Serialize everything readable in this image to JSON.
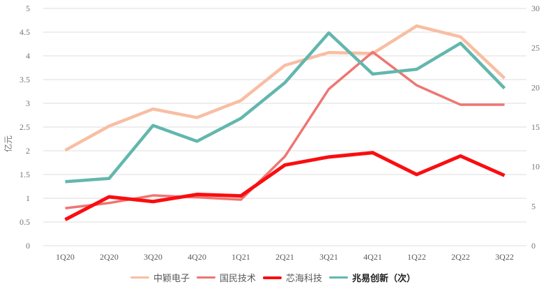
{
  "chart_data": {
    "type": "line",
    "categories": [
      "1Q20",
      "2Q20",
      "3Q20",
      "4Q20",
      "1Q21",
      "2Q21",
      "3Q21",
      "4Q21",
      "1Q22",
      "2Q22",
      "3Q22"
    ],
    "series": [
      {
        "name": "中颖电子",
        "axis": "left",
        "color": "#F8BEA3",
        "width": 4.5,
        "legend_bold": false,
        "values": [
          2.01,
          2.52,
          2.88,
          2.7,
          3.06,
          3.8,
          4.07,
          4.05,
          4.63,
          4.4,
          3.53
        ]
      },
      {
        "name": "国民技术",
        "axis": "left",
        "color": "#EE7672",
        "width": 3.5,
        "legend_bold": false,
        "values": [
          0.79,
          0.9,
          1.06,
          1.02,
          0.97,
          1.88,
          3.3,
          4.08,
          3.38,
          2.97,
          2.97
        ]
      },
      {
        "name": "芯海科技",
        "axis": "left",
        "color": "#FA0D10",
        "width": 5,
        "legend_bold": false,
        "values": [
          0.55,
          1.03,
          0.93,
          1.08,
          1.05,
          1.7,
          1.87,
          1.96,
          1.5,
          1.89,
          1.48
        ]
      },
      {
        "name": "兆易创新（次）",
        "axis": "right",
        "color": "#62B7AD",
        "width": 4.5,
        "legend_bold": true,
        "values": [
          8.1,
          8.5,
          15.2,
          13.2,
          16.1,
          20.6,
          26.9,
          21.7,
          22.3,
          25.6,
          19.9
        ]
      }
    ],
    "y_left": {
      "label": "亿元",
      "min": 0,
      "max": 5,
      "ticks": [
        "0",
        "0.5",
        "1",
        "1.5",
        "2",
        "2.5",
        "3",
        "3.5",
        "4",
        "4.5",
        "5"
      ]
    },
    "y_right": {
      "min": 0,
      "max": 30,
      "ticks": [
        "0",
        "5",
        "10",
        "15",
        "20",
        "25",
        "30"
      ]
    },
    "title": "",
    "grid": true,
    "legend_position": "bottom",
    "colors": {
      "grid_line": "#DCDCDC",
      "y_tick_text": "#757575",
      "x_tick_text": "#595959",
      "axis_title_text": "#757575"
    }
  }
}
